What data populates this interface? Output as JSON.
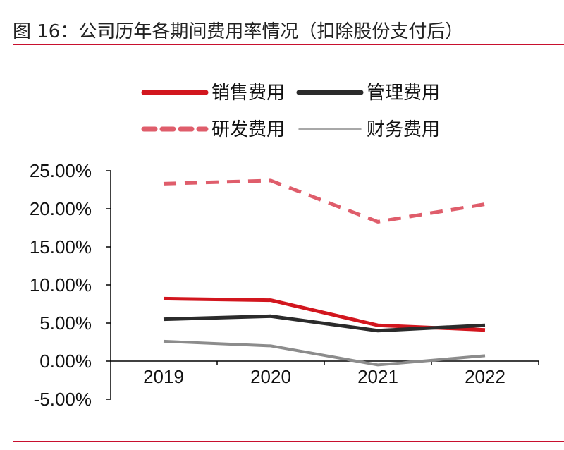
{
  "figure": {
    "title": "图 16：公司历年各期间费用率情况（扣除股份支付后）"
  },
  "chart_data": {
    "type": "line",
    "categories": [
      "2019",
      "2020",
      "2021",
      "2022"
    ],
    "series": [
      {
        "name": "销售费用",
        "values": [
          8.2,
          8.0,
          4.7,
          4.1
        ],
        "color": "#d2161e",
        "style": "solid"
      },
      {
        "name": "管理费用",
        "values": [
          5.5,
          5.9,
          4.0,
          4.7
        ],
        "color": "#2b2b2b",
        "style": "solid"
      },
      {
        "name": "研发费用",
        "values": [
          23.3,
          23.7,
          18.3,
          20.6
        ],
        "color": "#df5d6b",
        "style": "dashed"
      },
      {
        "name": "财务费用",
        "values": [
          2.6,
          2.0,
          -0.5,
          0.7
        ],
        "color": "#8c8c8c",
        "style": "thin"
      }
    ],
    "y_ticks": [
      "25.00%",
      "20.00%",
      "15.00%",
      "10.00%",
      "5.00%",
      "0.00%",
      "-5.00%"
    ],
    "ylim": [
      -5,
      25
    ],
    "legend_position": "top",
    "grid": false
  }
}
